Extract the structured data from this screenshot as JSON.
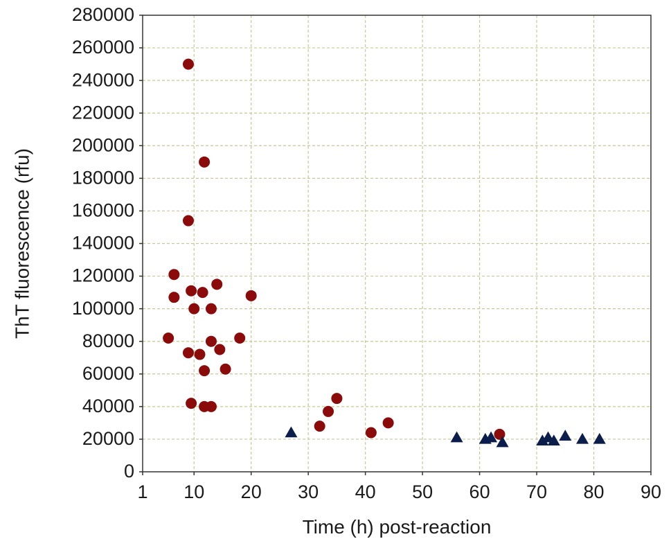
{
  "chart_data": {
    "type": "scatter",
    "title": "",
    "xlabel": "Time (h) post-reaction",
    "ylabel": "ThT fluorescence (rfu)",
    "xlim": [
      1,
      90
    ],
    "ylim": [
      0,
      280000
    ],
    "x_ticks": [
      1,
      10,
      20,
      30,
      40,
      50,
      60,
      70,
      80,
      90
    ],
    "x_tick_labels": [
      "1",
      "10",
      "20",
      "30",
      "40",
      "50",
      "60",
      "70",
      "80",
      "90"
    ],
    "y_ticks": [
      0,
      20000,
      40000,
      60000,
      80000,
      100000,
      120000,
      140000,
      160000,
      180000,
      200000,
      220000,
      240000,
      260000,
      280000
    ],
    "y_tick_labels": [
      "0",
      "20000",
      "40000",
      "60000",
      "80000",
      "100000",
      "120000",
      "140000",
      "160000",
      "180000",
      "200000",
      "220000",
      "240000",
      "260000",
      "280000"
    ],
    "grid": true,
    "grid_style": "dashed",
    "grid_color": "#c8c89a",
    "series": [
      {
        "marker": "circle",
        "color": "#8b0a0a",
        "points": [
          {
            "x": 5.5,
            "y": 82000
          },
          {
            "x": 6.5,
            "y": 121000
          },
          {
            "x": 6.5,
            "y": 107000
          },
          {
            "x": 9.0,
            "y": 250000
          },
          {
            "x": 9.0,
            "y": 154000
          },
          {
            "x": 9.0,
            "y": 73000
          },
          {
            "x": 9.5,
            "y": 111000
          },
          {
            "x": 9.5,
            "y": 42000
          },
          {
            "x": 10.0,
            "y": 100000
          },
          {
            "x": 11.0,
            "y": 72000
          },
          {
            "x": 11.5,
            "y": 110000
          },
          {
            "x": 11.8,
            "y": 190000
          },
          {
            "x": 11.8,
            "y": 62000
          },
          {
            "x": 11.8,
            "y": 40000
          },
          {
            "x": 13.0,
            "y": 100000
          },
          {
            "x": 13.0,
            "y": 80000
          },
          {
            "x": 13.0,
            "y": 40000
          },
          {
            "x": 14.0,
            "y": 115000
          },
          {
            "x": 14.5,
            "y": 75000
          },
          {
            "x": 15.5,
            "y": 63000
          },
          {
            "x": 18.0,
            "y": 82000
          },
          {
            "x": 20.0,
            "y": 108000
          },
          {
            "x": 32.0,
            "y": 28000
          },
          {
            "x": 33.5,
            "y": 37000
          },
          {
            "x": 35.0,
            "y": 45000
          },
          {
            "x": 41.0,
            "y": 24000
          },
          {
            "x": 44.0,
            "y": 30000
          },
          {
            "x": 63.5,
            "y": 23000
          }
        ]
      },
      {
        "marker": "triangle",
        "color": "#0b1d4a",
        "points": [
          {
            "x": 27.0,
            "y": 24000
          },
          {
            "x": 56.0,
            "y": 21000
          },
          {
            "x": 61.0,
            "y": 20000
          },
          {
            "x": 62.0,
            "y": 21000
          },
          {
            "x": 64.0,
            "y": 18000
          },
          {
            "x": 71.0,
            "y": 19000
          },
          {
            "x": 72.0,
            "y": 21000
          },
          {
            "x": 73.0,
            "y": 19000
          },
          {
            "x": 75.0,
            "y": 22000
          },
          {
            "x": 78.0,
            "y": 20000
          },
          {
            "x": 81.0,
            "y": 20000
          }
        ]
      }
    ]
  }
}
